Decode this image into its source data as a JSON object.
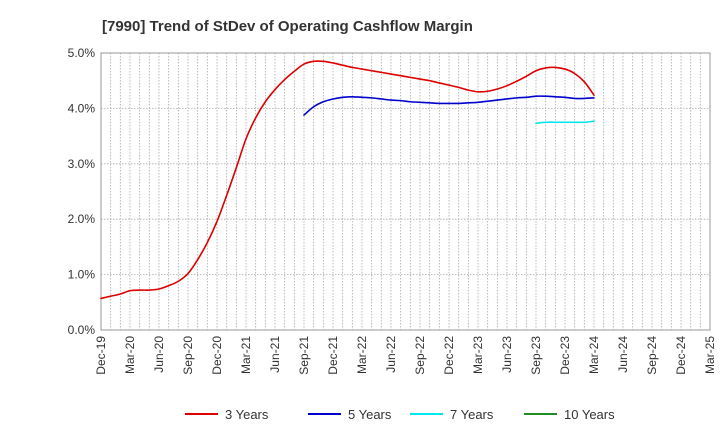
{
  "chart_data": {
    "type": "line",
    "title": "[7990]  Trend of StDev of Operating Cashflow Margin",
    "xlabel": "",
    "ylabel": "",
    "ylim": [
      0,
      5
    ],
    "y_ticks": [
      0,
      1,
      2,
      3,
      4,
      5
    ],
    "y_tick_labels": [
      "0.0%",
      "1.0%",
      "2.0%",
      "3.0%",
      "4.0%",
      "5.0%"
    ],
    "x_range": [
      "2019-12",
      "2025-03"
    ],
    "x_tick_labels": [
      "Dec-19",
      "Mar-20",
      "Jun-20",
      "Sep-20",
      "Dec-20",
      "Mar-21",
      "Jun-21",
      "Sep-21",
      "Dec-21",
      "Mar-22",
      "Jun-22",
      "Sep-22",
      "Dec-22",
      "Mar-23",
      "Jun-23",
      "Sep-23",
      "Dec-23",
      "Mar-24",
      "Jun-24",
      "Sep-24",
      "Dec-24",
      "Mar-25"
    ],
    "grid": true,
    "legend_position": "bottom",
    "series": [
      {
        "name": "3 Years",
        "color": "#dd0000",
        "x": [
          "2019-12",
          "2020-01",
          "2020-02",
          "2020-03",
          "2020-04",
          "2020-05",
          "2020-06",
          "2020-07",
          "2020-08",
          "2020-09",
          "2020-10",
          "2020-11",
          "2020-12",
          "2021-01",
          "2021-02",
          "2021-03",
          "2021-04",
          "2021-05",
          "2021-06",
          "2021-07",
          "2021-08",
          "2021-09",
          "2021-10",
          "2021-11",
          "2021-12",
          "2022-01",
          "2022-02",
          "2022-03",
          "2022-04",
          "2022-05",
          "2022-06",
          "2022-07",
          "2022-08",
          "2022-09",
          "2022-10",
          "2022-11",
          "2022-12",
          "2023-01",
          "2023-02",
          "2023-03",
          "2023-04",
          "2023-05",
          "2023-06",
          "2023-07",
          "2023-08",
          "2023-09",
          "2023-10",
          "2023-11",
          "2023-12",
          "2024-01",
          "2024-02",
          "2024-03"
        ],
        "values": [
          0.57,
          0.61,
          0.65,
          0.71,
          0.72,
          0.72,
          0.74,
          0.8,
          0.88,
          1.02,
          1.27,
          1.58,
          1.96,
          2.43,
          2.93,
          3.45,
          3.83,
          4.12,
          4.34,
          4.52,
          4.67,
          4.8,
          4.85,
          4.85,
          4.82,
          4.78,
          4.74,
          4.71,
          4.68,
          4.65,
          4.62,
          4.59,
          4.56,
          4.53,
          4.5,
          4.46,
          4.42,
          4.38,
          4.33,
          4.3,
          4.31,
          4.35,
          4.41,
          4.49,
          4.58,
          4.68,
          4.73,
          4.74,
          4.71,
          4.63,
          4.48,
          4.24
        ]
      },
      {
        "name": "5 Years",
        "color": "#0000cc",
        "x": [
          "2021-09",
          "2021-10",
          "2021-11",
          "2021-12",
          "2022-01",
          "2022-02",
          "2022-03",
          "2022-04",
          "2022-05",
          "2022-06",
          "2022-07",
          "2022-08",
          "2022-09",
          "2022-10",
          "2022-11",
          "2022-12",
          "2023-01",
          "2023-02",
          "2023-03",
          "2023-04",
          "2023-05",
          "2023-06",
          "2023-07",
          "2023-08",
          "2023-09",
          "2023-10",
          "2023-11",
          "2023-12",
          "2024-01",
          "2024-02",
          "2024-03"
        ],
        "values": [
          3.88,
          4.03,
          4.12,
          4.17,
          4.2,
          4.21,
          4.2,
          4.19,
          4.17,
          4.15,
          4.14,
          4.12,
          4.11,
          4.1,
          4.09,
          4.09,
          4.09,
          4.1,
          4.11,
          4.13,
          4.15,
          4.17,
          4.19,
          4.2,
          4.22,
          4.22,
          4.21,
          4.2,
          4.18,
          4.18,
          4.19
        ]
      },
      {
        "name": "7 Years",
        "color": "#00e5ee",
        "x": [
          "2023-09",
          "2023-10",
          "2023-11",
          "2023-12",
          "2024-01",
          "2024-02",
          "2024-03"
        ],
        "values": [
          3.73,
          3.75,
          3.75,
          3.75,
          3.75,
          3.75,
          3.77
        ]
      },
      {
        "name": "10 Years",
        "color": "#228b22",
        "x": [],
        "values": []
      }
    ]
  }
}
